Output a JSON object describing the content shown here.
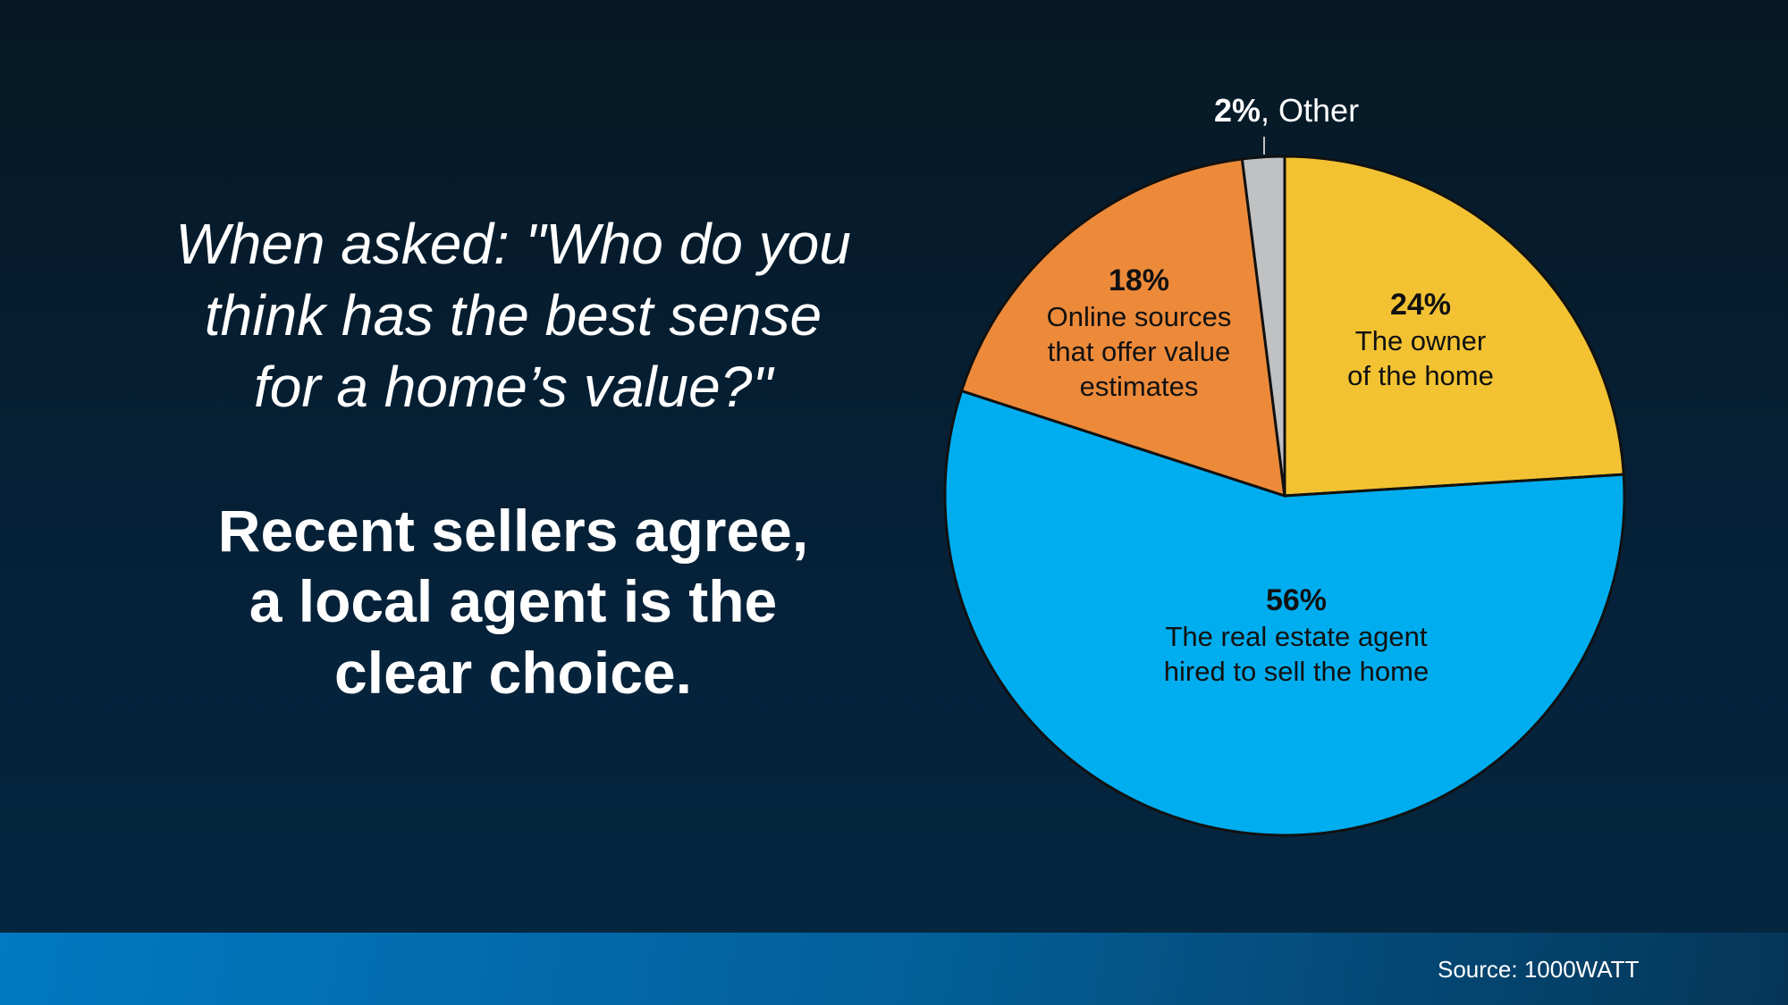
{
  "question": [
    "When asked: \"Who do you",
    "think has the best sense",
    "for a home’s value?\""
  ],
  "answer": [
    "Recent sellers agree,",
    "a local agent is the",
    "clear choice."
  ],
  "source": "Source: 1000WATT",
  "chart_data": {
    "type": "pie",
    "start": "top",
    "direction": "clockwise",
    "slices": [
      {
        "pct_label": "24%",
        "value": 24,
        "label": [
          "The owner",
          "of the home"
        ],
        "color": "#f2c232"
      },
      {
        "pct_label": "56%",
        "value": 56,
        "label": [
          "The real estate agent",
          "hired to sell the home"
        ],
        "color": "#00adef"
      },
      {
        "pct_label": "18%",
        "value": 18,
        "label": [
          "Online sources",
          "that offer value",
          "estimates"
        ],
        "color": "#ec8a3a"
      },
      {
        "pct_label": "2%",
        "value": 2,
        "label": [
          ", Other"
        ],
        "color": "#bfc1c3"
      }
    ]
  }
}
